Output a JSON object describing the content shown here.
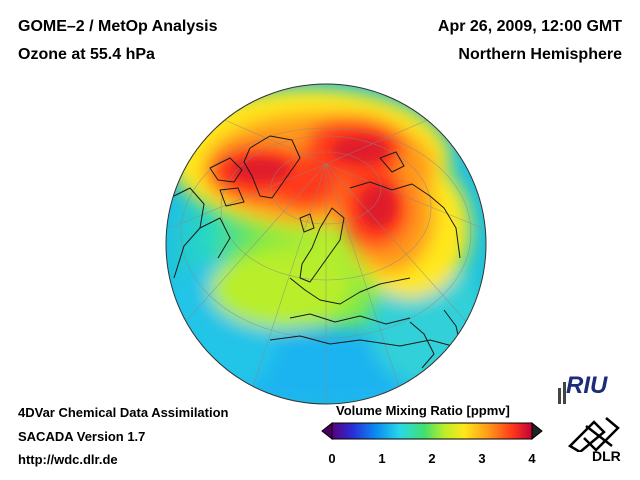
{
  "header": {
    "title_left_1": "GOME–2 / MetOp Analysis",
    "title_left_2": "Ozone at 55.4 hPa",
    "title_right_1": "Apr 26, 2009, 12:00 GMT",
    "title_right_2": "Northern Hemisphere"
  },
  "footer": {
    "line1": "4DVar Chemical Data Assimilation",
    "line2": "SACADA Version 1.7",
    "line3": "http://wdc.dlr.de"
  },
  "colorbar": {
    "label": "Volume Mixing Ratio [ppmv]",
    "min": 0,
    "max": 4,
    "ticks": [
      "0",
      "1",
      "2",
      "3",
      "4"
    ],
    "colors": [
      "#5a007a",
      "#2a2bd6",
      "#0a8cf0",
      "#2ad8e8",
      "#40e070",
      "#b8ee2a",
      "#ffe81a",
      "#ff9a1a",
      "#ff3a1a",
      "#c4003a"
    ]
  },
  "map": {
    "projection": "orthographic",
    "hemisphere": "Northern Hemisphere",
    "field": "ozone",
    "level_hpa": 55.4
  },
  "logos": {
    "riu_text": "RIU",
    "dlr_text": "DLR"
  }
}
